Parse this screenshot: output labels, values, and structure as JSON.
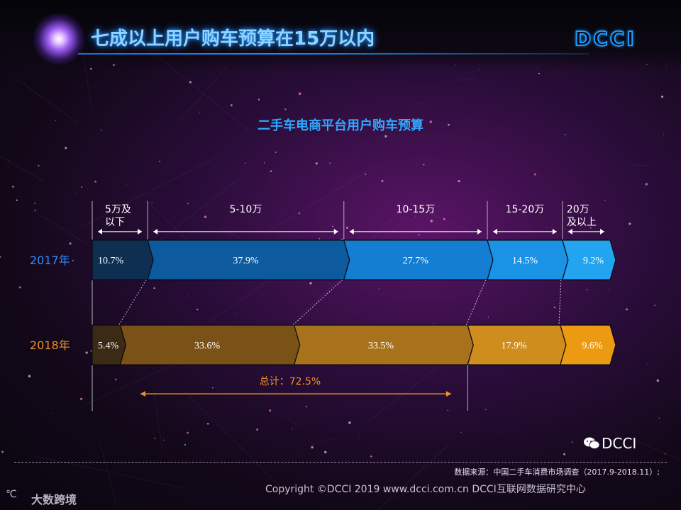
{
  "header": {
    "title": "七成以上用户购车预算在15万以内",
    "brand": "DCCI"
  },
  "chart_data": {
    "type": "bar",
    "orientation": "horizontal-stacked",
    "title": "二手车电商平台用户购车预算",
    "unit": "%",
    "categories": [
      "5万及以下",
      "5-10万",
      "10-15万",
      "15-20万",
      "20万及以上"
    ],
    "series": [
      {
        "name": "2017年",
        "values": [
          10.7,
          37.9,
          27.7,
          14.5,
          9.2
        ],
        "labels": [
          "10.7%",
          "37.9%",
          "27.7%",
          "14.5%",
          "9.2%"
        ]
      },
      {
        "name": "2018年",
        "values": [
          5.4,
          33.6,
          33.5,
          17.9,
          9.6
        ],
        "labels": [
          "5.4%",
          "33.6%",
          "33.5%",
          "17.9%",
          "9.6%"
        ]
      }
    ],
    "annotation": {
      "text": "总计：72.5%",
      "value": 72.5
    },
    "colors": {
      "series_2017": [
        "#0f2f52",
        "#0d5a9e",
        "#147ed2",
        "#1a93e6",
        "#22a4f0"
      ],
      "series_2018": [
        "#3b2a14",
        "#7a5218",
        "#a8711c",
        "#cf8d1d",
        "#ec9a12"
      ],
      "label_2017": "#2e8fff",
      "label_2018": "#f0922a"
    }
  },
  "footer": {
    "source": "数据来源：中国二手车消费市场调查（2017.9-2018.11）;",
    "copyright": "Copyright ©DCCI 2019  www.dcci.com.cn   DCCI互联网数据研究中心",
    "watermark": "DCCI",
    "logo_text": "大数跨境"
  }
}
